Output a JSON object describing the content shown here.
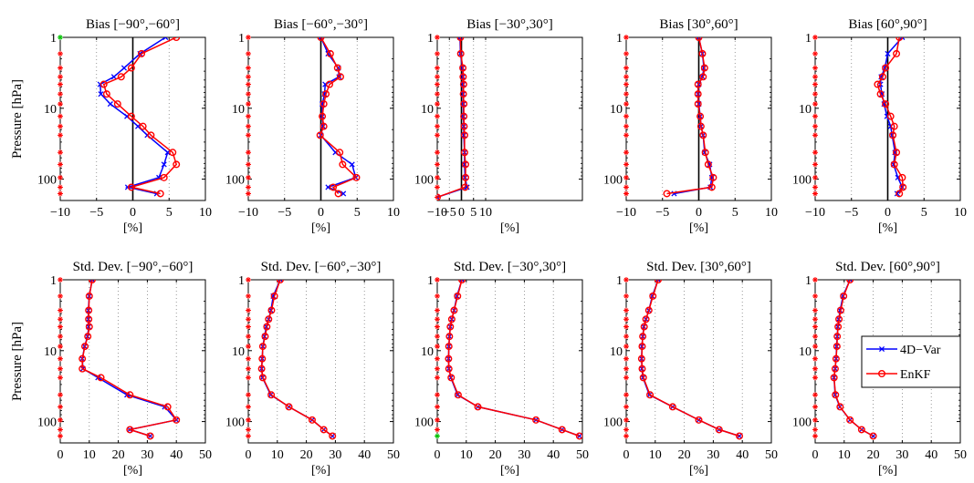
{
  "figure": {
    "ylabel": "Pressure [hPa]",
    "xunit": "[%]",
    "legend": [
      "4D−Var",
      "EnKF"
    ],
    "legend_panel": 9
  },
  "colors": {
    "4dvar": "#0000ff",
    "enkf": "#ff0000",
    "axis": "#000000",
    "grid": "#808080",
    "zero": "#000000",
    "marker_green": "#00c000"
  },
  "chart_data": [
    {
      "type": "line",
      "title": "Bias [−90°,−60°]",
      "xlabel": "[%]",
      "ylabel": "Pressure [hPa]",
      "xlim": [
        -10,
        10
      ],
      "xticks": [
        -10,
        -5,
        0,
        5,
        10
      ],
      "ylim": [
        1,
        200
      ],
      "yscale": "log",
      "yticks": [
        1,
        10,
        100
      ],
      "ytick_labels": [
        "1",
        "10",
        "100"
      ],
      "grid": "x-dotted",
      "zero_line": true,
      "series": [
        {
          "name": "4D−Var",
          "x": [
            4.5,
            1.0,
            -1.2,
            -2.6,
            -4.5,
            -4.4,
            -3.1,
            -0.8,
            0.7,
            2.0,
            4.8,
            4.3,
            3.6,
            -0.7,
            3.3
          ],
          "y": [
            1,
            1.7,
            2.7,
            3.6,
            4.6,
            6.3,
            8.7,
            13,
            18,
            24,
            42,
            62,
            95,
            130,
            160
          ]
        },
        {
          "name": "EnKF",
          "x": [
            6.0,
            1.2,
            -0.2,
            -1.6,
            -4.0,
            -3.6,
            -2.1,
            -0.2,
            1.4,
            2.5,
            5.5,
            6.0,
            4.3,
            -0.2,
            3.8
          ],
          "y": [
            1,
            1.7,
            2.7,
            3.6,
            4.6,
            6.3,
            8.7,
            13,
            18,
            24,
            42,
            62,
            95,
            130,
            160
          ]
        }
      ]
    },
    {
      "type": "line",
      "title": "Bias [−60°,−30°]",
      "xlabel": "[%]",
      "xlim": [
        -10,
        10
      ],
      "xticks": [
        -10,
        -5,
        0,
        5,
        10
      ],
      "ylim": [
        1,
        200
      ],
      "yscale": "log",
      "yticks": [
        1,
        10,
        100
      ],
      "ytick_labels": [
        "1",
        "10",
        "100"
      ],
      "grid": "x-dotted",
      "zero_line": true,
      "series": [
        {
          "name": "4D−Var",
          "x": [
            0.0,
            1.0,
            2.4,
            2.5,
            0.6,
            0.5,
            0.2,
            0.2,
            0.3,
            0.0,
            2.0,
            4.3,
            4.8,
            1.0,
            3.1
          ],
          "y": [
            1,
            1.7,
            2.7,
            3.6,
            4.6,
            6.3,
            8.7,
            13,
            18,
            24,
            42,
            62,
            95,
            130,
            160
          ]
        },
        {
          "name": "EnKF",
          "x": [
            0.0,
            1.3,
            2.3,
            2.7,
            1.2,
            0.7,
            0.4,
            0.2,
            0.4,
            -0.1,
            2.6,
            3.0,
            4.9,
            1.7,
            2.4
          ],
          "y": [
            1,
            1.7,
            2.7,
            3.6,
            4.6,
            6.3,
            8.7,
            13,
            18,
            24,
            42,
            62,
            95,
            130,
            160
          ]
        }
      ]
    },
    {
      "type": "line",
      "title": "Bias [−30°,30°]",
      "xlabel": "[%]",
      "xlim": [
        -10,
        50
      ],
      "xticks": [
        -10,
        -5,
        0,
        5,
        10
      ],
      "ylim": [
        1,
        200
      ],
      "yscale": "log",
      "yticks": [
        1,
        10,
        100
      ],
      "ytick_labels": [
        "1",
        "10",
        "100"
      ],
      "grid": "x-dotted",
      "zero_line": true,
      "series": [
        {
          "name": "4D−Var",
          "x": [
            -0.6,
            -0.4,
            0.4,
            0.6,
            0.7,
            0.7,
            0.8,
            0.8,
            1.0,
            1.0,
            1.3,
            1.3,
            1.5,
            2.3,
            -10
          ],
          "y": [
            1,
            1.7,
            2.7,
            3.6,
            4.6,
            6.3,
            8.7,
            13,
            18,
            24,
            42,
            62,
            95,
            130,
            180
          ]
        },
        {
          "name": "EnKF",
          "x": [
            -0.4,
            -0.3,
            0.6,
            0.7,
            0.9,
            0.8,
            1.0,
            1.0,
            1.1,
            1.3,
            1.3,
            1.7,
            1.7,
            1.5,
            -10
          ],
          "y": [
            1,
            1.7,
            2.7,
            3.6,
            4.6,
            6.3,
            8.7,
            13,
            18,
            24,
            42,
            62,
            95,
            130,
            180
          ]
        }
      ]
    },
    {
      "type": "line",
      "title": "Bias [30°,60°]",
      "xlabel": "[%]",
      "xlim": [
        -10,
        10
      ],
      "xticks": [
        -10,
        -5,
        0,
        5,
        10
      ],
      "ylim": [
        1,
        200
      ],
      "yscale": "log",
      "yticks": [
        1,
        10,
        100
      ],
      "ytick_labels": [
        "1",
        "10",
        "100"
      ],
      "grid": "x-dotted",
      "zero_line": true,
      "series": [
        {
          "name": "4D−Var",
          "x": [
            0.0,
            0.5,
            0.7,
            0.5,
            0.0,
            -0.1,
            0.0,
            0.2,
            0.3,
            0.6,
            0.8,
            1.5,
            1.8,
            1.6,
            -3.4
          ],
          "y": [
            1,
            1.7,
            2.7,
            3.6,
            4.6,
            6.3,
            8.7,
            13,
            18,
            24,
            42,
            62,
            95,
            130,
            160
          ]
        },
        {
          "name": "EnKF",
          "x": [
            0.0,
            0.5,
            0.8,
            0.6,
            -0.1,
            -0.1,
            -0.1,
            0.2,
            0.3,
            0.6,
            0.9,
            1.3,
            2.0,
            1.8,
            -4.4
          ],
          "y": [
            1,
            1.7,
            2.7,
            3.6,
            4.6,
            6.3,
            8.7,
            13,
            18,
            24,
            42,
            62,
            95,
            130,
            160
          ]
        }
      ]
    },
    {
      "type": "line",
      "title": "Bias [60°,90°]",
      "xlabel": "[%]",
      "xlim": [
        -10,
        10
      ],
      "xticks": [
        -10,
        -5,
        0,
        5,
        10
      ],
      "ylim": [
        1,
        200
      ],
      "yscale": "log",
      "yticks": [
        1,
        10,
        100
      ],
      "ytick_labels": [
        "1",
        "10",
        "100"
      ],
      "grid": "x-dotted",
      "zero_line": true,
      "series": [
        {
          "name": "4D−Var",
          "x": [
            2.0,
            0.0,
            -0.4,
            -0.9,
            -1.0,
            -0.8,
            -0.5,
            -0.1,
            0.4,
            0.6,
            1.0,
            0.8,
            1.4,
            2.0,
            1.3
          ],
          "y": [
            1,
            1.7,
            2.7,
            3.6,
            4.6,
            6.3,
            8.7,
            13,
            18,
            24,
            42,
            62,
            95,
            130,
            160
          ]
        },
        {
          "name": "EnKF",
          "x": [
            1.6,
            1.2,
            -0.3,
            -0.7,
            -1.4,
            -1.0,
            -0.3,
            0.4,
            0.9,
            0.7,
            1.2,
            0.9,
            2.0,
            2.1,
            1.6
          ],
          "y": [
            1,
            1.7,
            2.7,
            3.6,
            4.6,
            6.3,
            8.7,
            13,
            18,
            24,
            42,
            62,
            95,
            130,
            160
          ]
        }
      ]
    },
    {
      "type": "line",
      "title": "Std. Dev. [−90°,−60°]",
      "xlabel": "[%]",
      "ylabel": "Pressure [hPa]",
      "xlim": [
        0,
        50
      ],
      "xticks": [
        0,
        10,
        20,
        30,
        40,
        50
      ],
      "ylim": [
        1,
        200
      ],
      "yscale": "log",
      "yticks": [
        1,
        10,
        100
      ],
      "ytick_labels": [
        "1",
        "10",
        "100"
      ],
      "grid": "x-dotted",
      "zero_line": false,
      "series": [
        {
          "name": "4D−Var",
          "x": [
            11,
            10,
            9.7,
            9.7,
            9.8,
            9.4,
            8.4,
            7.6,
            7.8,
            13,
            23,
            36,
            40,
            24,
            31
          ],
          "y": [
            1,
            1.7,
            2.7,
            3.6,
            4.6,
            6.3,
            8.7,
            13,
            18,
            24,
            42,
            62,
            95,
            130,
            160
          ]
        },
        {
          "name": "EnKF",
          "x": [
            11,
            10,
            9.8,
            9.8,
            10,
            9.5,
            8.5,
            7.6,
            7.6,
            14,
            24,
            37,
            40,
            24,
            31
          ],
          "y": [
            1,
            1.7,
            2.7,
            3.6,
            4.6,
            6.3,
            8.7,
            13,
            18,
            24,
            42,
            62,
            95,
            130,
            160
          ]
        }
      ]
    },
    {
      "type": "line",
      "title": "Std. Dev. [−60°,−30°]",
      "xlabel": "[%]",
      "xlim": [
        0,
        50
      ],
      "xticks": [
        0,
        10,
        20,
        30,
        40,
        50
      ],
      "ylim": [
        1,
        200
      ],
      "yscale": "log",
      "yticks": [
        1,
        10,
        100
      ],
      "ytick_labels": [
        "1",
        "10",
        "100"
      ],
      "grid": "x-dotted",
      "zero_line": false,
      "series": [
        {
          "name": "4D−Var",
          "x": [
            11,
            8.6,
            7.8,
            7.0,
            6.2,
            5.6,
            5.0,
            4.8,
            4.6,
            4.9,
            7.7,
            14,
            22,
            26,
            29
          ],
          "y": [
            1,
            1.7,
            2.7,
            3.6,
            4.6,
            6.3,
            8.7,
            13,
            18,
            24,
            42,
            62,
            95,
            130,
            160
          ]
        },
        {
          "name": "EnKF",
          "x": [
            11,
            9.0,
            8.0,
            7.0,
            6.4,
            5.8,
            5.0,
            4.8,
            4.6,
            5.0,
            7.9,
            14,
            22,
            26,
            29
          ],
          "y": [
            1,
            1.7,
            2.7,
            3.6,
            4.6,
            6.3,
            8.7,
            13,
            18,
            24,
            42,
            62,
            95,
            130,
            160
          ]
        }
      ]
    },
    {
      "type": "line",
      "title": "Std. Dev. [−30°,30°]",
      "xlabel": "[%]",
      "xlim": [
        0,
        50
      ],
      "xticks": [
        0,
        10,
        20,
        30,
        40,
        50
      ],
      "ylim": [
        1,
        200
      ],
      "yscale": "log",
      "yticks": [
        1,
        10,
        100
      ],
      "ytick_labels": [
        "1",
        "10",
        "100"
      ],
      "grid": "x-dotted",
      "zero_line": false,
      "series": [
        {
          "name": "4D−Var",
          "x": [
            8.5,
            6.8,
            5.8,
            5.0,
            4.5,
            4.2,
            4.0,
            3.9,
            4.0,
            4.7,
            7.0,
            14,
            34,
            43,
            49
          ],
          "y": [
            1,
            1.7,
            2.7,
            3.6,
            4.6,
            6.3,
            8.7,
            13,
            18,
            24,
            42,
            62,
            95,
            130,
            160
          ]
        },
        {
          "name": "EnKF",
          "x": [
            8.5,
            7.0,
            5.8,
            5.0,
            4.5,
            4.2,
            4.0,
            3.9,
            4.0,
            4.8,
            7.2,
            14,
            34,
            43,
            49
          ],
          "y": [
            1,
            1.7,
            2.7,
            3.6,
            4.6,
            6.3,
            8.7,
            13,
            18,
            24,
            42,
            62,
            95,
            130,
            160
          ]
        }
      ]
    },
    {
      "type": "line",
      "title": "Std. Dev. [30°,60°]",
      "xlabel": "[%]",
      "xlim": [
        0,
        50
      ],
      "xticks": [
        0,
        10,
        20,
        30,
        40,
        50
      ],
      "ylim": [
        1,
        200
      ],
      "yscale": "log",
      "yticks": [
        1,
        10,
        100
      ],
      "ytick_labels": [
        "1",
        "10",
        "100"
      ],
      "grid": "x-dotted",
      "zero_line": false,
      "series": [
        {
          "name": "4D−Var",
          "x": [
            11,
            9.0,
            7.8,
            6.8,
            6.1,
            5.7,
            5.4,
            5.3,
            5.4,
            5.8,
            8.0,
            16,
            25,
            32,
            39
          ],
          "y": [
            1,
            1.7,
            2.7,
            3.6,
            4.6,
            6.3,
            8.7,
            13,
            18,
            24,
            42,
            62,
            95,
            130,
            160
          ]
        },
        {
          "name": "EnKF",
          "x": [
            11,
            9.2,
            7.8,
            6.8,
            6.2,
            5.7,
            5.5,
            5.3,
            5.5,
            5.9,
            8.2,
            16,
            25,
            32,
            39
          ],
          "y": [
            1,
            1.7,
            2.7,
            3.6,
            4.6,
            6.3,
            8.7,
            13,
            18,
            24,
            42,
            62,
            95,
            130,
            160
          ]
        }
      ]
    },
    {
      "type": "line",
      "title": "Std. Dev. [60°,90°]",
      "xlabel": "[%]",
      "xlim": [
        0,
        50
      ],
      "xticks": [
        0,
        10,
        20,
        30,
        40,
        50
      ],
      "ylim": [
        1,
        200
      ],
      "yscale": "log",
      "yticks": [
        1,
        10,
        100
      ],
      "ytick_labels": [
        "1",
        "10",
        "100"
      ],
      "grid": "x-dotted",
      "zero_line": false,
      "series": [
        {
          "name": "4D−Var",
          "x": [
            12,
            9.6,
            8.6,
            8.1,
            7.8,
            7.6,
            7.4,
            7.2,
            6.9,
            6.5,
            6.9,
            8.5,
            12,
            16,
            20
          ],
          "y": [
            1,
            1.7,
            2.7,
            3.6,
            4.6,
            6.3,
            8.7,
            13,
            18,
            24,
            42,
            62,
            95,
            130,
            160
          ]
        },
        {
          "name": "EnKF",
          "x": [
            12,
            9.8,
            8.8,
            8.2,
            7.9,
            7.6,
            7.5,
            7.2,
            6.9,
            6.5,
            7.0,
            8.6,
            12,
            16,
            20
          ],
          "y": [
            1,
            1.7,
            2.7,
            3.6,
            4.6,
            6.3,
            8.7,
            13,
            18,
            24,
            42,
            62,
            95,
            130,
            160
          ]
        }
      ]
    }
  ]
}
